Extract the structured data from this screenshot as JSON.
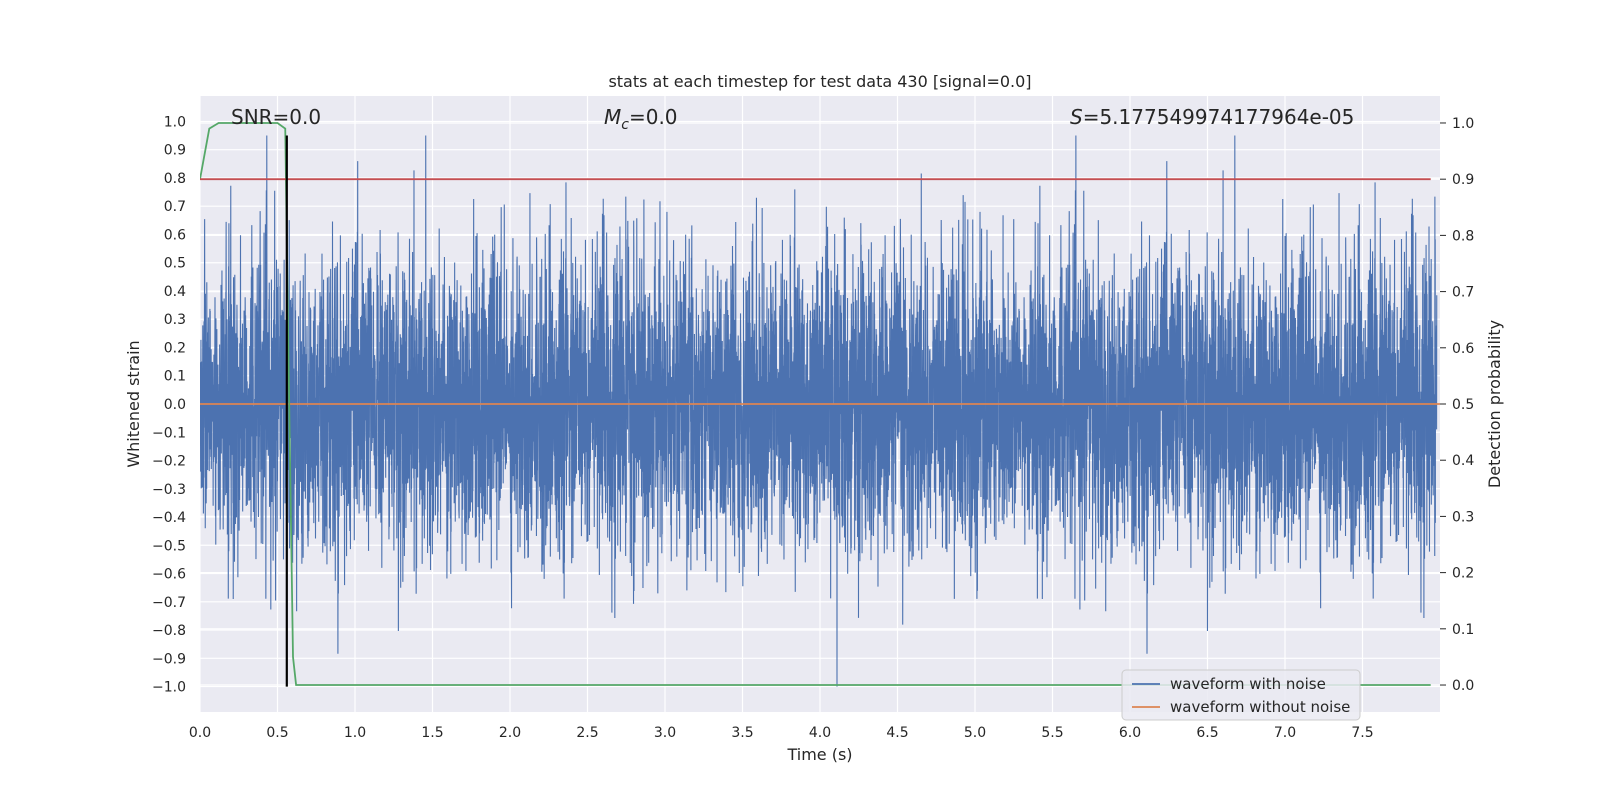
{
  "chart_data": {
    "type": "line",
    "title": "stats at each timestep for test data 430 [signal=0.0]",
    "xlabel": "Time (s)",
    "ylabel": "Whitened strain",
    "y2label": "Detection probability",
    "xlim": [
      0.0,
      8.0
    ],
    "ylim": [
      -1.09,
      1.09
    ],
    "y2lim": [
      -0.048,
      1.048
    ],
    "x_ticks": [
      "0.0",
      "0.5",
      "1.0",
      "1.5",
      "2.0",
      "2.5",
      "3.0",
      "3.5",
      "4.0",
      "4.5",
      "5.0",
      "5.5",
      "6.0",
      "6.5",
      "7.0",
      "7.5"
    ],
    "y_ticks": [
      "1.0",
      "0.9",
      "0.8",
      "0.7",
      "0.6",
      "0.5",
      "0.4",
      "0.3",
      "0.2",
      "0.1",
      "0.0",
      "−0.1",
      "−0.2",
      "−0.3",
      "−0.4",
      "−0.5",
      "−0.6",
      "−0.7",
      "−0.8",
      "−0.9",
      "−1.0"
    ],
    "y2_ticks": [
      "1.0",
      "0.9",
      "0.8",
      "0.7",
      "0.6",
      "0.5",
      "0.4",
      "0.3",
      "0.2",
      "0.1",
      "0.0"
    ],
    "annotations": {
      "snr": "SNR=0.0",
      "mc_symbol": "M",
      "mc_sub": "c",
      "mc_value": "=0.0",
      "s_symbol": "S",
      "s_value": "=5.177549974177964e-05"
    },
    "series": [
      {
        "name": "waveform with noise",
        "axis": "left",
        "color": "#4c72b0",
        "description_range": [
          -1.0,
          0.95
        ]
      },
      {
        "name": "waveform without noise",
        "axis": "left",
        "color": "#dd8452",
        "x": [
          0.0,
          8.0
        ],
        "y": [
          0.0,
          0.0
        ]
      },
      {
        "name": "detection probability",
        "axis": "right",
        "color": "#55a868",
        "x": [
          0.0,
          0.06,
          0.12,
          0.2,
          0.3,
          0.4,
          0.5,
          0.55,
          0.57,
          0.6,
          0.62,
          7.94
        ],
        "y": [
          0.9,
          0.99,
          1.0,
          1.0,
          1.0,
          1.0,
          1.0,
          0.99,
          0.6,
          0.05,
          0.0,
          0.0
        ]
      },
      {
        "name": "threshold",
        "axis": "right",
        "color": "#c44e52",
        "x": [
          0.0,
          7.94
        ],
        "y": [
          0.9,
          0.9
        ]
      },
      {
        "name": "marker",
        "axis": "left",
        "color": "#000000",
        "x": [
          0.56,
          0.56
        ],
        "y": [
          -1.0,
          0.95
        ]
      }
    ],
    "legend": [
      "waveform with noise",
      "waveform without noise"
    ],
    "legend_position": "lower right",
    "grid": true
  },
  "colors": {
    "plot_bg": "#eaeaf2",
    "grid": "#ffffff",
    "text": "#262626"
  }
}
